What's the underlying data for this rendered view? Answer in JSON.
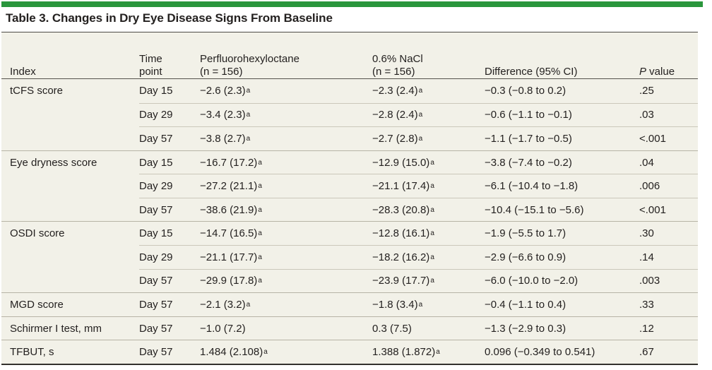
{
  "colors": {
    "accent_green": "#2a963c",
    "table_background": "#f2f1e8",
    "text": "#242120"
  },
  "table": {
    "title": "Table 3. Changes in Dry Eye Disease Signs From Baseline",
    "columns": [
      {
        "id": "index",
        "label_lines": [
          "Index"
        ]
      },
      {
        "id": "time-point",
        "label_lines": [
          "Time",
          "point"
        ]
      },
      {
        "id": "pfho",
        "label_lines": [
          "Perfluorohexyloctane",
          "(n = 156)"
        ]
      },
      {
        "id": "nacl",
        "label_lines": [
          "0.6% NaCl",
          "(n = 156)"
        ]
      },
      {
        "id": "difference",
        "label_lines": [
          "Difference (95% CI)"
        ]
      },
      {
        "id": "p-value",
        "label_lines": [
          "P value"
        ],
        "italic_first_letter": true
      }
    ],
    "rows": [
      {
        "index": "tCFS score",
        "group_start": true,
        "time_point": "Day 15",
        "pfho": "−2.6 (2.3)",
        "pfho_sup": "a",
        "nacl": "−2.3 (2.4)",
        "nacl_sup": "a",
        "difference": "−0.3 (−0.8 to 0.2)",
        "p_value": ".25"
      },
      {
        "index": "",
        "group_start": false,
        "time_point": "Day 29",
        "pfho": "−3.4 (2.3)",
        "pfho_sup": "a",
        "nacl": "−2.8 (2.4)",
        "nacl_sup": "a",
        "difference": "−0.6 (−1.1 to −0.1)",
        "p_value": ".03"
      },
      {
        "index": "",
        "group_start": false,
        "time_point": "Day 57",
        "pfho": "−3.8 (2.7)",
        "pfho_sup": "a",
        "nacl": "−2.7 (2.8)",
        "nacl_sup": "a",
        "difference": "−1.1 (−1.7 to −0.5)",
        "p_value": "<.001"
      },
      {
        "index": "Eye dryness score",
        "group_start": true,
        "time_point": "Day 15",
        "pfho": "−16.7 (17.2)",
        "pfho_sup": "a",
        "nacl": "−12.9 (15.0)",
        "nacl_sup": "a",
        "difference": "−3.8 (−7.4 to −0.2)",
        "p_value": ".04"
      },
      {
        "index": "",
        "group_start": false,
        "time_point": "Day 29",
        "pfho": "−27.2 (21.1)",
        "pfho_sup": "a",
        "nacl": "−21.1 (17.4)",
        "nacl_sup": "a",
        "difference": "−6.1 (−10.4 to −1.8)",
        "p_value": ".006"
      },
      {
        "index": "",
        "group_start": false,
        "time_point": "Day 57",
        "pfho": "−38.6 (21.9)",
        "pfho_sup": "a",
        "nacl": "−28.3 (20.8)",
        "nacl_sup": "a",
        "difference": "−10.4 (−15.1 to −5.6)",
        "p_value": "<.001"
      },
      {
        "index": "OSDI score",
        "group_start": true,
        "time_point": "Day 15",
        "pfho": "−14.7 (16.5)",
        "pfho_sup": "a",
        "nacl": "−12.8 (16.1)",
        "nacl_sup": "a",
        "difference": "−1.9 (−5.5 to 1.7)",
        "p_value": ".30"
      },
      {
        "index": "",
        "group_start": false,
        "time_point": "Day 29",
        "pfho": "−21.1 (17.7)",
        "pfho_sup": "a",
        "nacl": "−18.2 (16.2)",
        "nacl_sup": "a",
        "difference": "−2.9 (−6.6 to 0.9)",
        "p_value": ".14"
      },
      {
        "index": "",
        "group_start": false,
        "time_point": "Day 57",
        "pfho": "−29.9 (17.8)",
        "pfho_sup": "a",
        "nacl": "−23.9 (17.7)",
        "nacl_sup": "a",
        "difference": "−6.0 (−10.0 to −2.0)",
        "p_value": ".003"
      },
      {
        "index": "MGD score",
        "group_start": true,
        "time_point": "Day 57",
        "pfho": "−2.1 (3.2)",
        "pfho_sup": "a",
        "nacl": "−1.8 (3.4)",
        "nacl_sup": "a",
        "difference": "−0.4 (−1.1 to 0.4)",
        "p_value": ".33"
      },
      {
        "index": "Schirmer I test, mm",
        "group_start": true,
        "time_point": "Day 57",
        "pfho": "−1.0 (7.2)",
        "pfho_sup": null,
        "nacl": "0.3 (7.5)",
        "nacl_sup": null,
        "difference": "−1.3 (−2.9 to 0.3)",
        "p_value": ".12"
      },
      {
        "index": "TFBUT, s",
        "group_start": true,
        "time_point": "Day 57",
        "pfho": "1.484 (2.108)",
        "pfho_sup": "a",
        "nacl": "1.388 (1.872)",
        "nacl_sup": "a",
        "difference": "0.096 (−0.349 to 0.541)",
        "p_value": ".67"
      }
    ]
  }
}
